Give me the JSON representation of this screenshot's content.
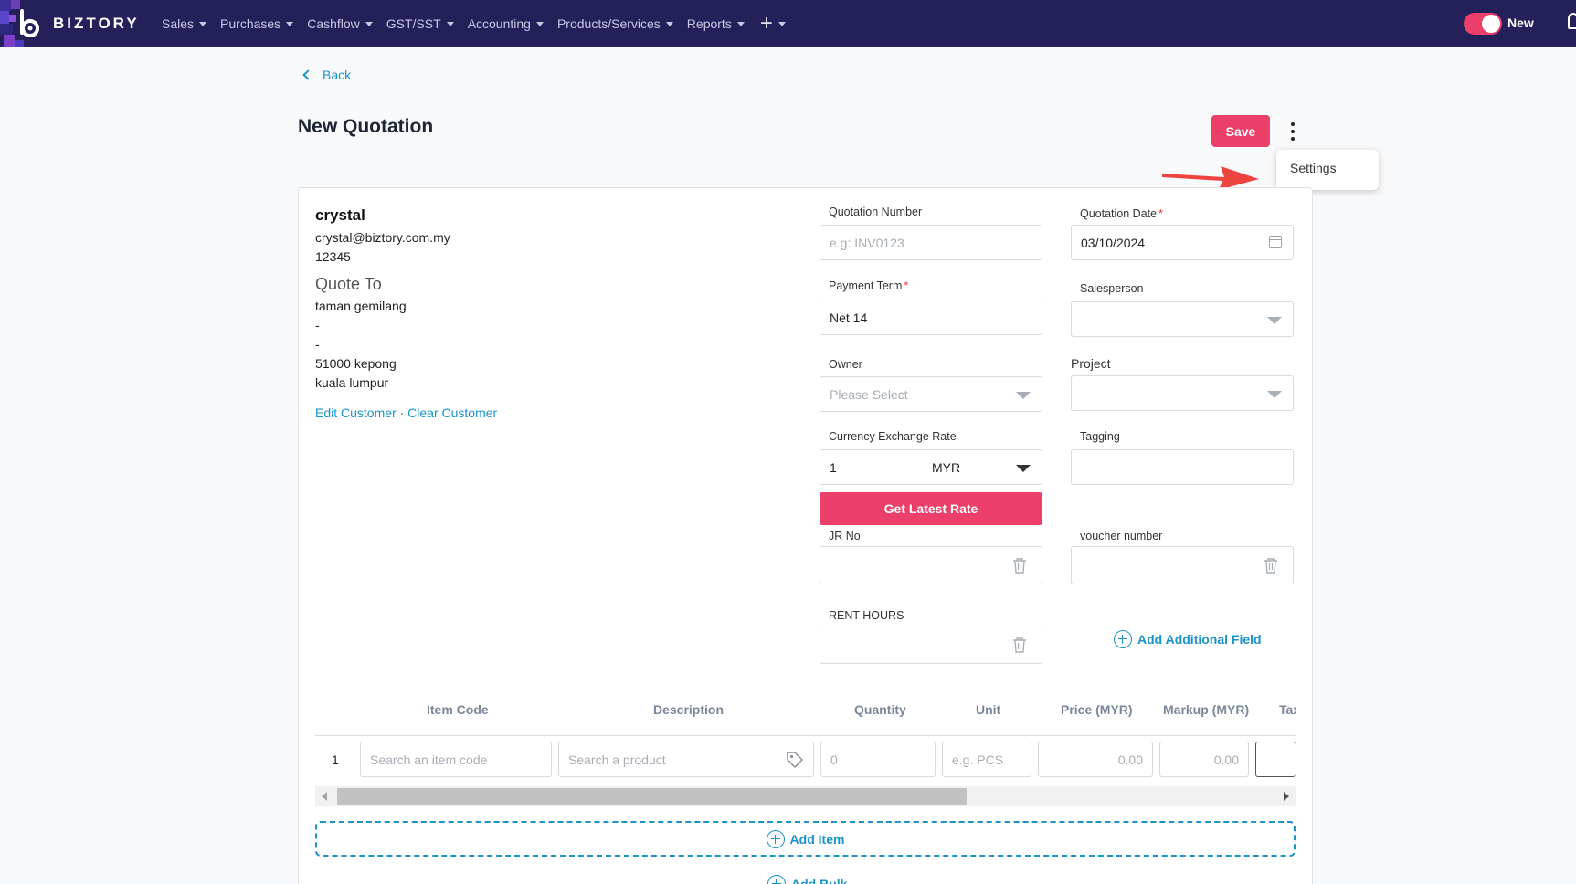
{
  "brand": {
    "name": "BIZTORY"
  },
  "nav": {
    "items": [
      "Sales",
      "Purchases",
      "Cashflow",
      "GST/SST",
      "Accounting",
      "Products/Services",
      "Reports"
    ],
    "plus": "+",
    "toggle_label": "New"
  },
  "page": {
    "back_label": "Back",
    "title": "New Quotation",
    "save_label": "Save",
    "menu_settings": "Settings"
  },
  "customer": {
    "name": "crystal",
    "email": "crystal@biztory.com.my",
    "phone": "12345",
    "quote_to_label": "Quote To",
    "address": [
      "taman gemilang",
      "-",
      "-",
      "51000 kepong",
      "kuala lumpur"
    ],
    "edit_link": "Edit Customer",
    "separator": "·",
    "clear_link": "Clear Customer"
  },
  "form": {
    "quotation_number": {
      "label": "Quotation Number",
      "placeholder": "e.g: INV0123"
    },
    "quotation_date": {
      "label": "Quotation Date",
      "value": "03/10/2024"
    },
    "payment_term": {
      "label": "Payment Term",
      "value": "Net 14"
    },
    "salesperson": {
      "label": "Salesperson",
      "value": ""
    },
    "owner": {
      "label": "Owner",
      "placeholder": "Please Select"
    },
    "project": {
      "label": "Project",
      "value": ""
    },
    "currency": {
      "label": "Currency Exchange Rate",
      "rate": "1",
      "code": "MYR"
    },
    "tagging": {
      "label": "Tagging",
      "value": ""
    },
    "get_rate_label": "Get Latest Rate",
    "jr_no": {
      "label": "JR No",
      "value": ""
    },
    "voucher_number": {
      "label": "voucher number",
      "value": ""
    },
    "rent_hours": {
      "label": "RENT HOURS",
      "value": ""
    },
    "required_mark": "*",
    "add_field_label": "Add Additional Field"
  },
  "table": {
    "headers": [
      "Item Code",
      "Description",
      "Quantity",
      "Unit",
      "Price (MYR)",
      "Markup (MYR)",
      "Tax"
    ],
    "row": {
      "number": "1",
      "item_code_placeholder": "Search an item code",
      "product_placeholder": "Search a product",
      "quantity_placeholder": "0",
      "unit_placeholder": "e.g. PCS",
      "price_placeholder": "0.00",
      "markup_placeholder": "0.00"
    },
    "add_item_label": "Add Item",
    "add_bulk_label": "Add Bulk"
  },
  "colors": {
    "nav_bg": "#23205a",
    "accent": "#ec3f6a",
    "link": "#1a93c8"
  }
}
